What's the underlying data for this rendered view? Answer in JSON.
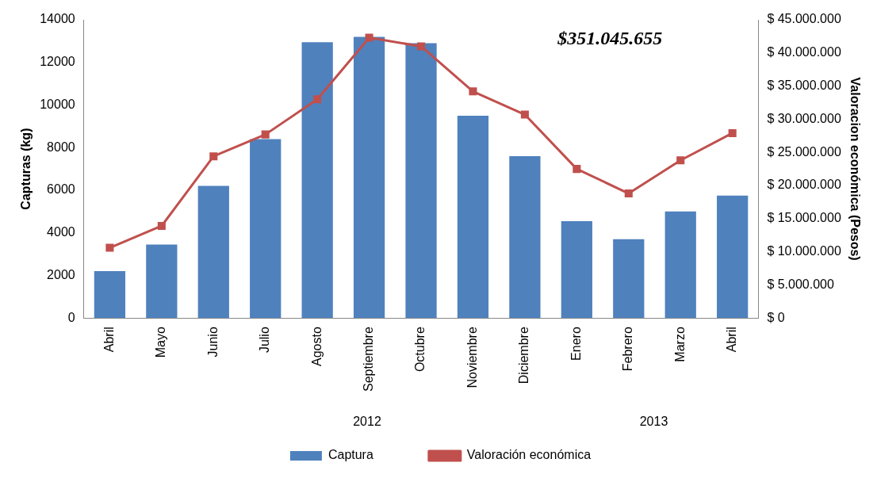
{
  "chart_data": {
    "type": "bar",
    "ylabel": "Capturas (kg)",
    "y2label": "Valoracion económica (Pesos)",
    "categories": [
      "Abril",
      "Mayo",
      "Junio",
      "Julio",
      "Agosto",
      "Septiembre",
      "Octubre",
      "Noviembre",
      "Diciembre",
      "Enero",
      "Febrero",
      "Marzo",
      "Abril"
    ],
    "series": [
      {
        "name": "Captura",
        "color": "#4f81bd",
        "values": [
          2200,
          3450,
          6200,
          8400,
          12950,
          13200,
          12900,
          9500,
          7600,
          4550,
          3700,
          5000,
          5750
        ]
      },
      {
        "name": "Valoración económica",
        "type": "line",
        "axis": "y2",
        "color": "#c0504d",
        "marker": "square",
        "values": [
          10600000,
          13900000,
          24400000,
          27700000,
          33000000,
          42300000,
          41000000,
          34200000,
          30700000,
          22500000,
          18800000,
          23800000,
          27900000
        ]
      }
    ],
    "ylim": [
      0,
      14000
    ],
    "yticks": [
      0,
      2000,
      4000,
      6000,
      8000,
      10000,
      12000,
      14000
    ],
    "y2lim": [
      0,
      45000000
    ],
    "y2ticks": [
      {
        "value": 0,
        "label": "$ 0"
      },
      {
        "value": 5000000,
        "label": "$ 5.000.000"
      },
      {
        "value": 10000000,
        "label": "$ 10.000.000"
      },
      {
        "value": 15000000,
        "label": "$ 15.000.000"
      },
      {
        "value": 20000000,
        "label": "$ 20.000.000"
      },
      {
        "value": 25000000,
        "label": "$ 25.000.000"
      },
      {
        "value": 30000000,
        "label": "$ 30.000.000"
      },
      {
        "value": 35000000,
        "label": "$ 35.000.000"
      },
      {
        "value": 40000000,
        "label": "$ 40.000.000"
      },
      {
        "value": 45000000,
        "label": "$ 45.000.000"
      }
    ],
    "annotations": [
      "$351.045.655",
      "2012",
      "2013"
    ],
    "grid": false,
    "legend": "bottom"
  }
}
